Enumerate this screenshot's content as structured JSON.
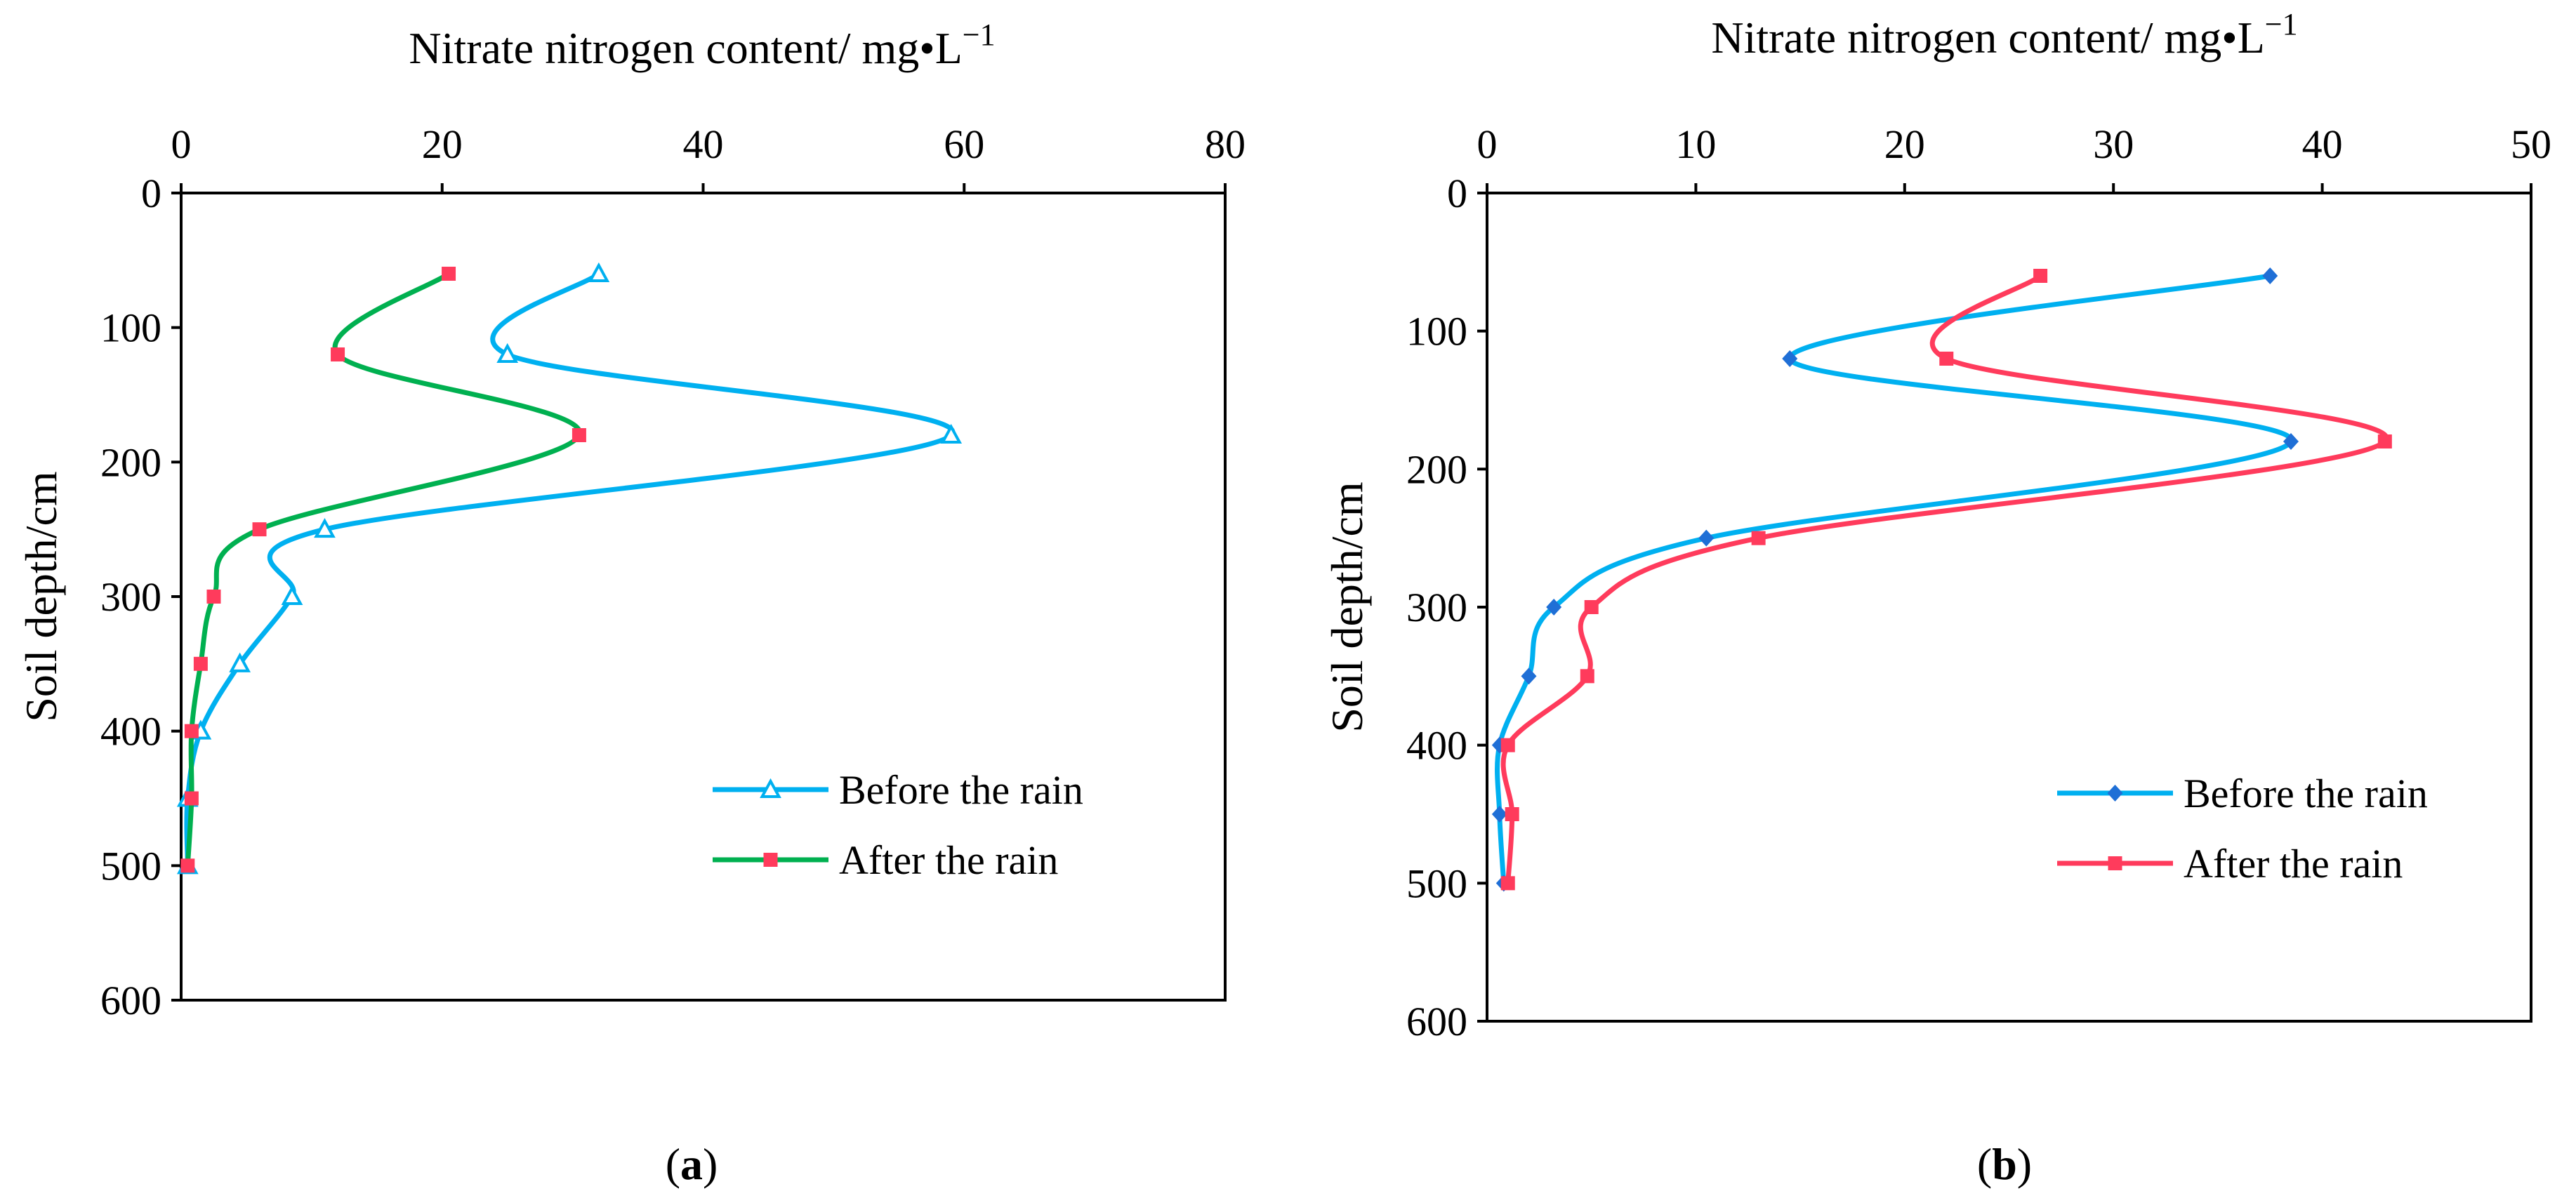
{
  "chart_data": [
    {
      "type": "line",
      "panel_label": "a",
      "xlabel": "Nitrate nitrogen content/ mg•L",
      "xlabel_superscript": "−1",
      "ylabel": "Soil depth/cm",
      "x_axis_position": "top",
      "y_axis_inverted": true,
      "xlim": [
        0,
        80
      ],
      "ylim": [
        0,
        600
      ],
      "xticks": [
        "0",
        "20",
        "40",
        "60",
        "80"
      ],
      "yticks": [
        "0",
        "100",
        "200",
        "300",
        "400",
        "500",
        "600"
      ],
      "grid": false,
      "legend_position": "bottom-right",
      "series": [
        {
          "name": "Before the rain",
          "color": "#00b0f0",
          "marker": "triangle",
          "x": [
            32,
            25,
            59,
            11,
            8.5,
            4.5,
            1.5,
            0.5,
            0.5
          ],
          "y": [
            60,
            120,
            180,
            250,
            300,
            350,
            400,
            450,
            500
          ]
        },
        {
          "name": "After the rain",
          "color": "#00b050",
          "marker_color": "#ff3b5c",
          "marker": "square",
          "x": [
            20.5,
            12,
            30.5,
            6,
            2.5,
            1.5,
            0.8,
            0.8,
            0.5
          ],
          "y": [
            60,
            120,
            180,
            250,
            300,
            350,
            400,
            450,
            500
          ]
        }
      ]
    },
    {
      "type": "line",
      "panel_label": "b",
      "xlabel": "Nitrate nitrogen content/ mg•L",
      "xlabel_superscript": "−1",
      "ylabel": "Soil depth/cm",
      "x_axis_position": "top",
      "y_axis_inverted": true,
      "xlim": [
        0,
        50
      ],
      "ylim": [
        0,
        600
      ],
      "xticks": [
        "0",
        "10",
        "20",
        "30",
        "40",
        "50"
      ],
      "yticks": [
        "0",
        "100",
        "200",
        "300",
        "400",
        "500",
        "600"
      ],
      "grid": false,
      "legend_position": "bottom-right",
      "series": [
        {
          "name": "Before the rain",
          "color": "#00b0f0",
          "marker_color": "#1f6fd6",
          "marker": "diamond",
          "x": [
            37.5,
            14.5,
            38.5,
            10.5,
            3.2,
            2,
            0.6,
            0.6,
            0.8
          ],
          "y": [
            60,
            120,
            180,
            250,
            300,
            350,
            400,
            450,
            500
          ]
        },
        {
          "name": "After the rain",
          "color": "#ff3b5c",
          "marker": "square",
          "x": [
            26.5,
            22,
            43,
            13,
            5,
            4.8,
            1,
            1.2,
            1
          ],
          "y": [
            60,
            120,
            180,
            250,
            300,
            350,
            400,
            450,
            500
          ]
        }
      ]
    }
  ]
}
